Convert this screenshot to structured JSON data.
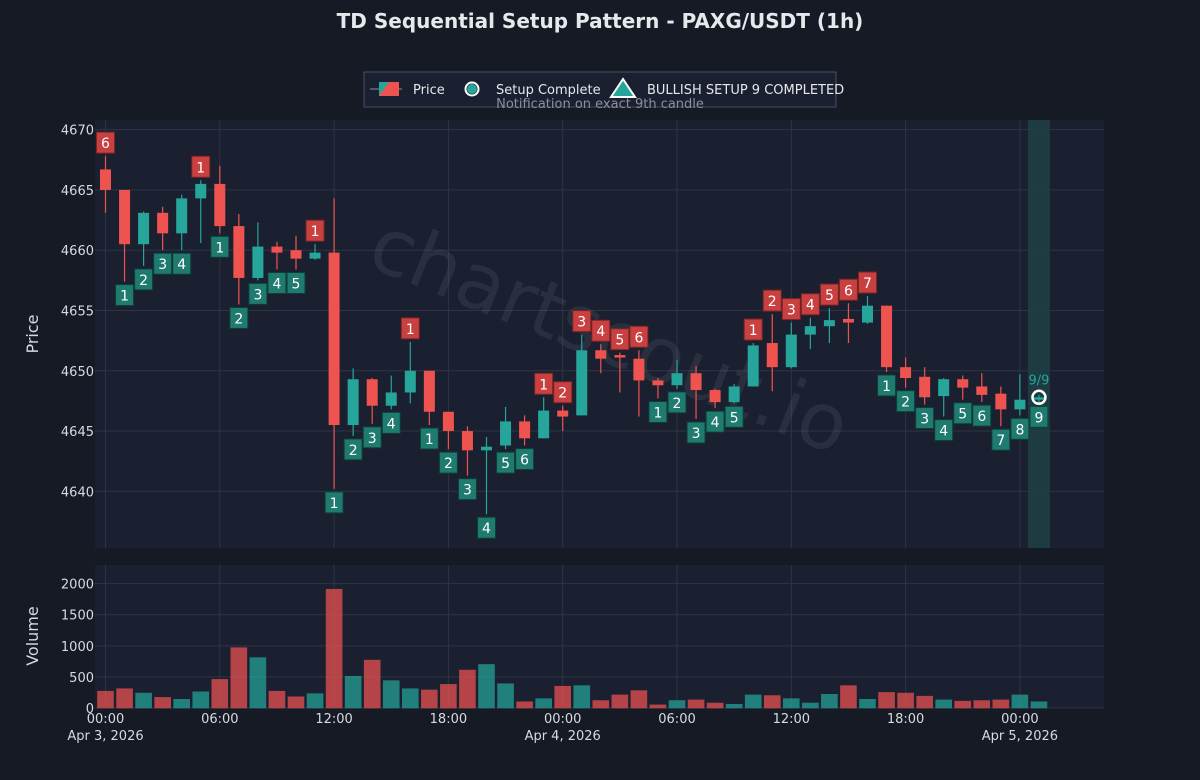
{
  "title": "TD Sequential Setup Pattern - PAXG/USDT (1h)",
  "legend": {
    "price": "Price",
    "setup_complete": "Setup Complete",
    "bullish": "BULLISH SETUP 9 COMPLETED",
    "notification": "Notification on exact 9th candle"
  },
  "watermark": "chartscout.io",
  "completion_label": "9/9",
  "colors": {
    "background": "#151a24",
    "panel": "#1b2030",
    "grid": "#2e3445",
    "up": "#26a69a",
    "down": "#ef5350",
    "buy_box": "#1f7a70",
    "sell_box": "#c94040",
    "highlight": "#1f3e44"
  },
  "chart_data": {
    "type": "candlestick",
    "interval": "1h",
    "price_panel": {
      "ylabel": "Price",
      "ylim": [
        4635.3,
        4670.8
      ],
      "yticks": [
        4640,
        4645,
        4650,
        4655,
        4660,
        4665,
        4670
      ]
    },
    "volume_panel": {
      "ylabel": "Volume",
      "ylim": [
        0,
        2300
      ],
      "yticks": [
        0,
        500,
        1000,
        1500,
        2000
      ]
    },
    "x_ticks": [
      {
        "index": 0,
        "time": "00:00",
        "date": "Apr 3, 2026"
      },
      {
        "index": 6,
        "time": "06:00",
        "date": ""
      },
      {
        "index": 12,
        "time": "12:00",
        "date": ""
      },
      {
        "index": 18,
        "time": "18:00",
        "date": ""
      },
      {
        "index": 24,
        "time": "00:00",
        "date": "Apr 4, 2026"
      },
      {
        "index": 30,
        "time": "06:00",
        "date": ""
      },
      {
        "index": 36,
        "time": "12:00",
        "date": ""
      },
      {
        "index": 42,
        "time": "18:00",
        "date": ""
      },
      {
        "index": 48,
        "time": "00:00",
        "date": "Apr 5, 2026"
      }
    ],
    "highlight_index": 49,
    "candles": [
      {
        "o": 4666.7,
        "h": 4667.8,
        "l": 4663.1,
        "c": 4665.0,
        "v": 270,
        "count": "6",
        "type": "sell"
      },
      {
        "o": 4665.0,
        "h": 4665.0,
        "l": 4657.4,
        "c": 4660.5,
        "v": 310,
        "count": "1",
        "type": "buy"
      },
      {
        "o": 4660.5,
        "h": 4663.2,
        "l": 4658.7,
        "c": 4663.1,
        "v": 240,
        "count": "2",
        "type": "buy"
      },
      {
        "o": 4663.1,
        "h": 4663.6,
        "l": 4660.0,
        "c": 4661.4,
        "v": 170,
        "count": "3",
        "type": "buy"
      },
      {
        "o": 4661.4,
        "h": 4664.6,
        "l": 4660.0,
        "c": 4664.3,
        "v": 140,
        "count": "4",
        "type": "buy"
      },
      {
        "o": 4664.3,
        "h": 4665.8,
        "l": 4660.6,
        "c": 4665.5,
        "v": 260,
        "count": "1",
        "type": "sell"
      },
      {
        "o": 4665.5,
        "h": 4667.0,
        "l": 4661.4,
        "c": 4662.0,
        "v": 460,
        "count": "1",
        "type": "buy"
      },
      {
        "o": 4662.0,
        "h": 4663.0,
        "l": 4655.5,
        "c": 4657.7,
        "v": 970,
        "count": "2",
        "type": "buy"
      },
      {
        "o": 4657.7,
        "h": 4662.3,
        "l": 4657.5,
        "c": 4660.3,
        "v": 810,
        "count": "3",
        "type": "buy"
      },
      {
        "o": 4660.3,
        "h": 4660.7,
        "l": 4658.4,
        "c": 4659.8,
        "v": 270,
        "count": "4",
        "type": "buy"
      },
      {
        "o": 4660.0,
        "h": 4661.2,
        "l": 4658.4,
        "c": 4659.3,
        "v": 180,
        "count": "5",
        "type": "buy"
      },
      {
        "o": 4659.3,
        "h": 4660.5,
        "l": 4659.2,
        "c": 4659.8,
        "v": 230,
        "count": "1",
        "type": "sell"
      },
      {
        "o": 4659.8,
        "h": 4664.3,
        "l": 4640.2,
        "c": 4645.5,
        "v": 1910,
        "count": "1",
        "type": "buy"
      },
      {
        "o": 4645.5,
        "h": 4650.2,
        "l": 4644.6,
        "c": 4649.3,
        "v": 510,
        "count": "2",
        "type": "buy"
      },
      {
        "o": 4649.3,
        "h": 4649.4,
        "l": 4645.6,
        "c": 4647.1,
        "v": 770,
        "count": "3",
        "type": "buy"
      },
      {
        "o": 4647.1,
        "h": 4649.6,
        "l": 4646.8,
        "c": 4648.2,
        "v": 440,
        "count": "4",
        "type": "buy"
      },
      {
        "o": 4648.2,
        "h": 4652.4,
        "l": 4647.3,
        "c": 4650.0,
        "v": 310,
        "count": "1",
        "type": "sell"
      },
      {
        "o": 4650.0,
        "h": 4650.0,
        "l": 4645.5,
        "c": 4646.6,
        "v": 290,
        "count": "1",
        "type": "buy"
      },
      {
        "o": 4646.6,
        "h": 4646.6,
        "l": 4643.5,
        "c": 4645.0,
        "v": 380,
        "count": "2",
        "type": "buy"
      },
      {
        "o": 4645.0,
        "h": 4645.4,
        "l": 4641.3,
        "c": 4643.4,
        "v": 610,
        "count": "3",
        "type": "buy"
      },
      {
        "o": 4643.4,
        "h": 4644.5,
        "l": 4638.1,
        "c": 4643.7,
        "v": 700,
        "count": "4",
        "type": "buy"
      },
      {
        "o": 4643.8,
        "h": 4647.0,
        "l": 4643.5,
        "c": 4645.8,
        "v": 390,
        "count": "5",
        "type": "buy"
      },
      {
        "o": 4645.8,
        "h": 4646.3,
        "l": 4643.8,
        "c": 4644.4,
        "v": 100,
        "count": "6",
        "type": "buy"
      },
      {
        "o": 4644.4,
        "h": 4647.8,
        "l": 4644.4,
        "c": 4646.7,
        "v": 150,
        "count": "1",
        "type": "sell"
      },
      {
        "o": 4646.7,
        "h": 4647.1,
        "l": 4645.0,
        "c": 4646.2,
        "v": 350,
        "count": "2",
        "type": "sell"
      },
      {
        "o": 4646.3,
        "h": 4653.0,
        "l": 4646.3,
        "c": 4651.7,
        "v": 360,
        "count": "3",
        "type": "sell"
      },
      {
        "o": 4651.7,
        "h": 4652.2,
        "l": 4649.8,
        "c": 4651.0,
        "v": 120,
        "count": "4",
        "type": "sell"
      },
      {
        "o": 4651.3,
        "h": 4651.5,
        "l": 4648.2,
        "c": 4651.1,
        "v": 210,
        "count": "5",
        "type": "sell"
      },
      {
        "o": 4651.0,
        "h": 4651.7,
        "l": 4646.2,
        "c": 4649.2,
        "v": 280,
        "count": "6",
        "type": "sell"
      },
      {
        "o": 4649.2,
        "h": 4649.4,
        "l": 4647.7,
        "c": 4648.8,
        "v": 50,
        "count": "1",
        "type": "buy"
      },
      {
        "o": 4648.8,
        "h": 4650.9,
        "l": 4648.5,
        "c": 4649.8,
        "v": 120,
        "count": "2",
        "type": "buy"
      },
      {
        "o": 4649.8,
        "h": 4650.4,
        "l": 4646.0,
        "c": 4648.4,
        "v": 130,
        "count": "3",
        "type": "buy"
      },
      {
        "o": 4648.4,
        "h": 4648.5,
        "l": 4646.9,
        "c": 4647.4,
        "v": 80,
        "count": "4",
        "type": "buy"
      },
      {
        "o": 4647.4,
        "h": 4648.9,
        "l": 4647.3,
        "c": 4648.7,
        "v": 60,
        "count": "5",
        "type": "buy"
      },
      {
        "o": 4648.7,
        "h": 4652.3,
        "l": 4648.7,
        "c": 4652.1,
        "v": 210,
        "count": "1",
        "type": "sell"
      },
      {
        "o": 4652.3,
        "h": 4654.7,
        "l": 4648.3,
        "c": 4650.3,
        "v": 200,
        "count": "2",
        "type": "sell"
      },
      {
        "o": 4650.3,
        "h": 4654.0,
        "l": 4650.2,
        "c": 4653.0,
        "v": 150,
        "count": "3",
        "type": "sell"
      },
      {
        "o": 4653.0,
        "h": 4654.4,
        "l": 4651.8,
        "c": 4653.7,
        "v": 80,
        "count": "4",
        "type": "sell"
      },
      {
        "o": 4653.7,
        "h": 4655.2,
        "l": 4652.3,
        "c": 4654.2,
        "v": 220,
        "count": "5",
        "type": "sell"
      },
      {
        "o": 4654.3,
        "h": 4655.6,
        "l": 4652.3,
        "c": 4654.0,
        "v": 360,
        "count": "6",
        "type": "sell"
      },
      {
        "o": 4654.0,
        "h": 4656.2,
        "l": 4653.9,
        "c": 4655.4,
        "v": 140,
        "count": "7",
        "type": "sell"
      },
      {
        "o": 4655.4,
        "h": 4655.4,
        "l": 4649.9,
        "c": 4650.3,
        "v": 250,
        "count": "1",
        "type": "buy"
      },
      {
        "o": 4650.3,
        "h": 4651.1,
        "l": 4648.6,
        "c": 4649.4,
        "v": 240,
        "count": "2",
        "type": "buy"
      },
      {
        "o": 4649.5,
        "h": 4650.3,
        "l": 4647.2,
        "c": 4647.8,
        "v": 190,
        "count": "3",
        "type": "buy"
      },
      {
        "o": 4647.9,
        "h": 4649.4,
        "l": 4646.2,
        "c": 4649.3,
        "v": 130,
        "count": "4",
        "type": "buy"
      },
      {
        "o": 4649.3,
        "h": 4649.6,
        "l": 4647.6,
        "c": 4648.6,
        "v": 110,
        "count": "5",
        "type": "buy"
      },
      {
        "o": 4648.7,
        "h": 4649.8,
        "l": 4647.4,
        "c": 4648.0,
        "v": 120,
        "count": "6",
        "type": "buy"
      },
      {
        "o": 4648.1,
        "h": 4648.7,
        "l": 4645.4,
        "c": 4646.8,
        "v": 130,
        "count": "7",
        "type": "buy"
      },
      {
        "o": 4646.8,
        "h": 4649.7,
        "l": 4646.3,
        "c": 4647.6,
        "v": 210,
        "count": "8",
        "type": "buy"
      },
      {
        "o": 4647.6,
        "h": 4648.0,
        "l": 4647.3,
        "c": 4647.8,
        "v": 100,
        "count": "9",
        "type": "buy"
      }
    ]
  }
}
